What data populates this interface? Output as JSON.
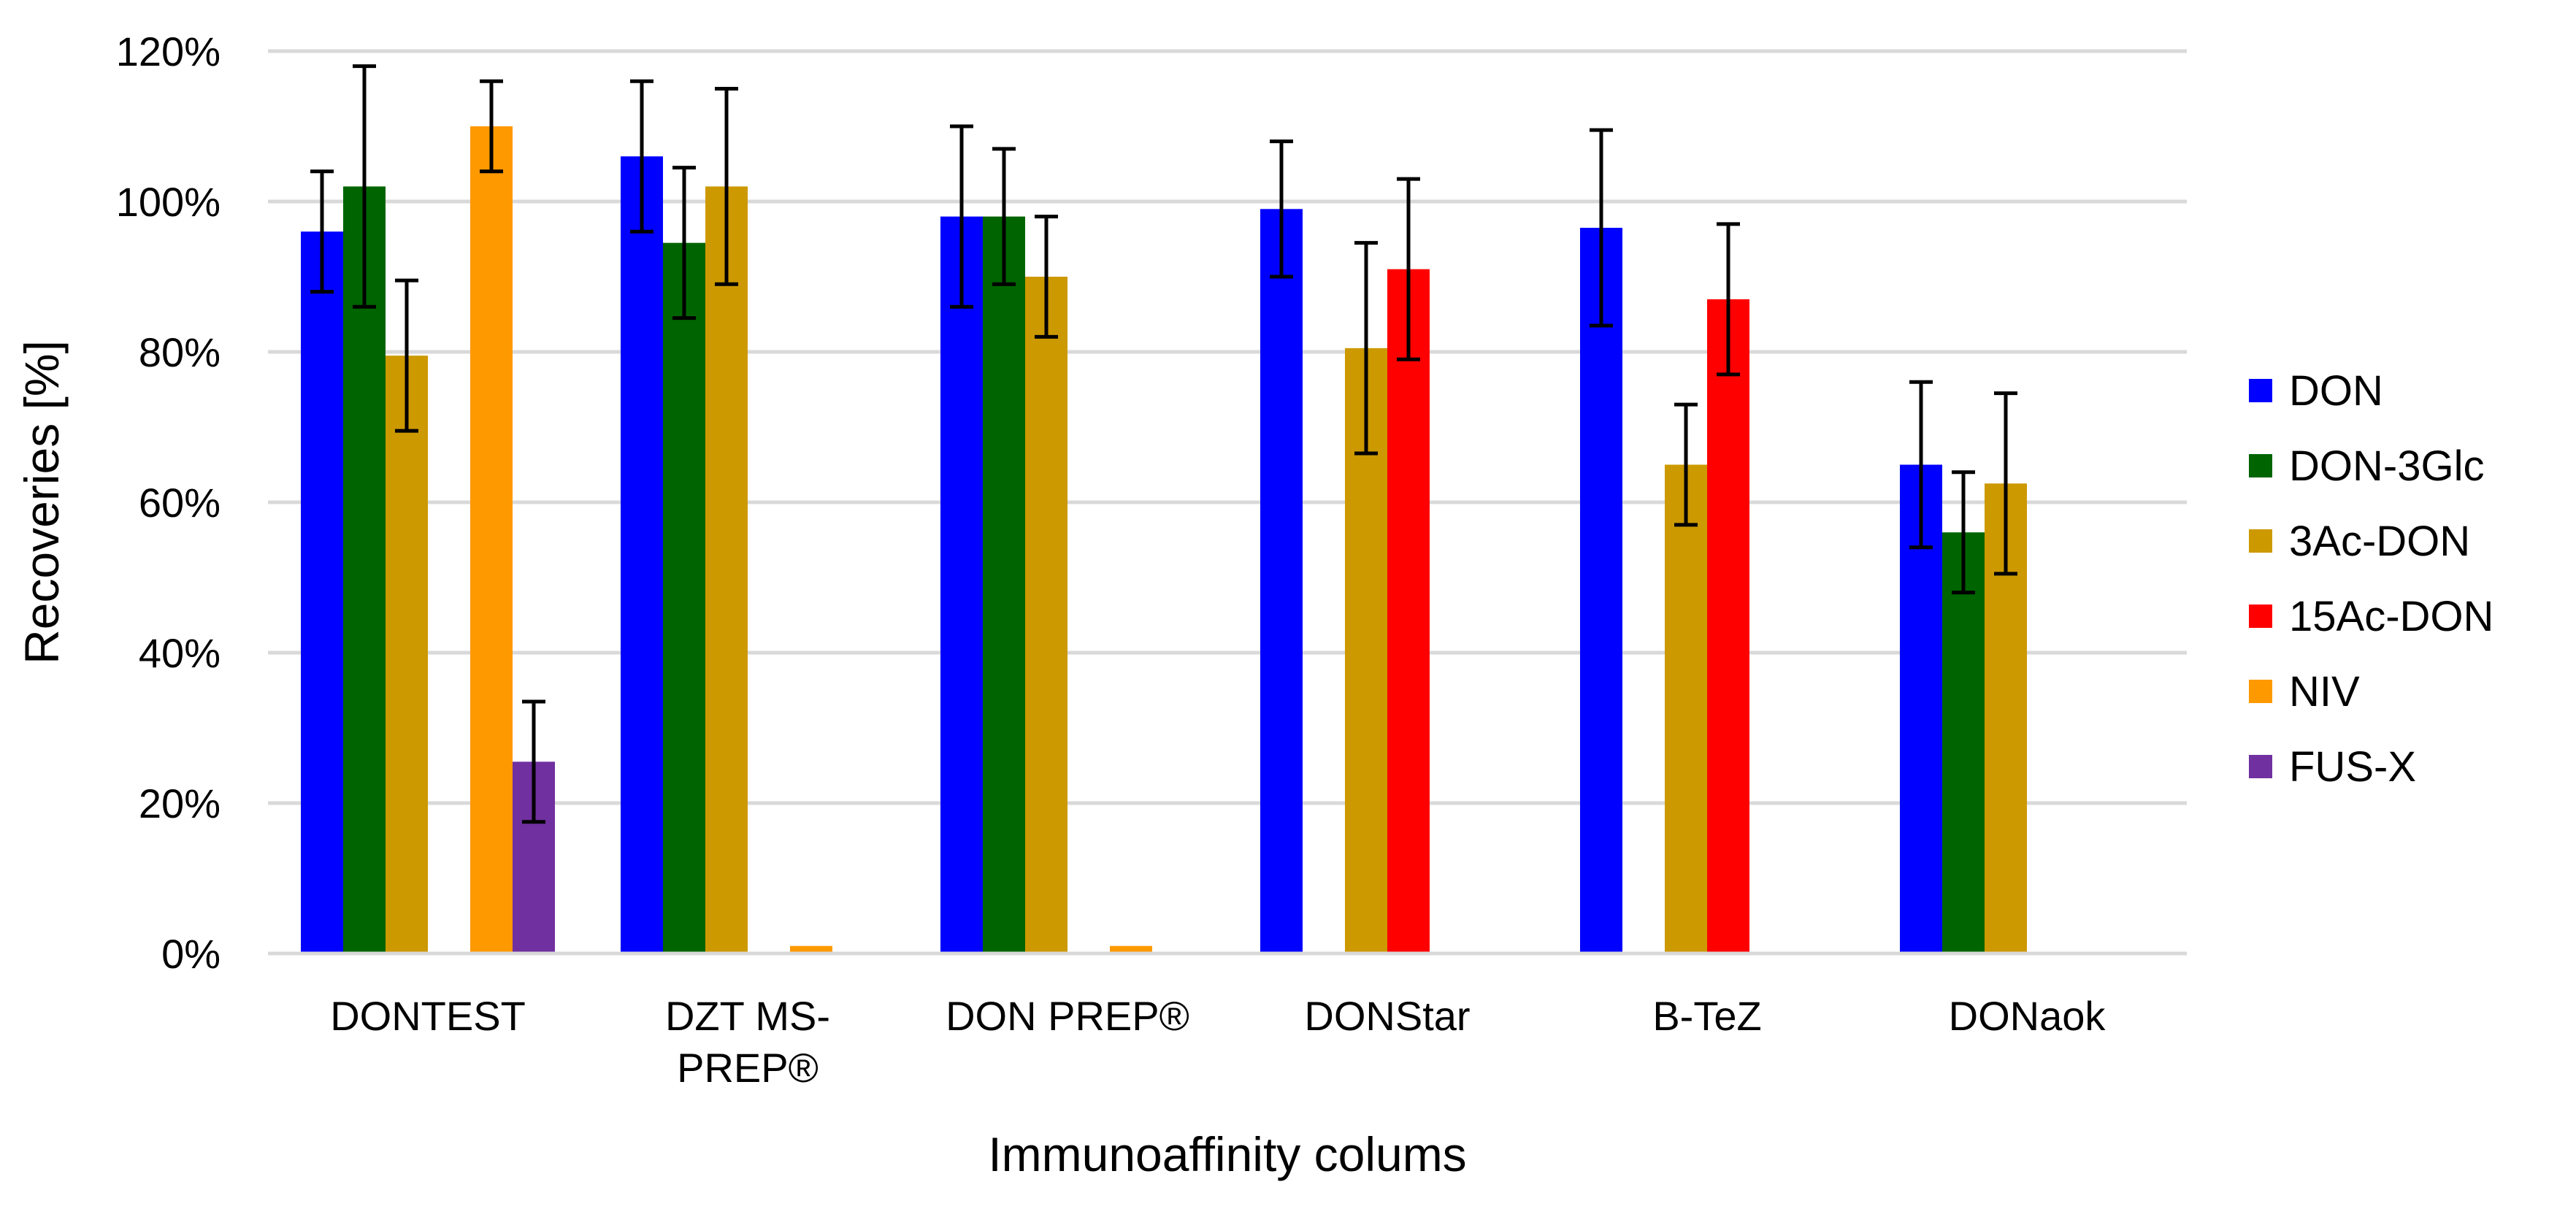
{
  "chart_data": {
    "type": "bar",
    "title": "",
    "xlabel": "Immunoaffinity colums",
    "ylabel": "Recoveries [%]",
    "ylim": [
      0,
      120
    ],
    "yticks": [
      "0%",
      "20%",
      "40%",
      "60%",
      "80%",
      "100%",
      "120%"
    ],
    "grid": true,
    "legend_position": "right",
    "categories": [
      [
        "DONTEST"
      ],
      [
        "DZT MS-",
        "PREP®"
      ],
      [
        "DON PREP®"
      ],
      [
        "DONStar"
      ],
      [
        "B-TeZ"
      ],
      [
        "DONaok"
      ]
    ],
    "series": [
      {
        "name": "DON",
        "color": "#0000FF",
        "values": [
          96,
          106,
          98,
          99,
          96.5,
          65
        ],
        "errors": [
          8,
          10,
          12,
          9,
          13,
          11
        ]
      },
      {
        "name": "DON-3Glc",
        "color": "#006400",
        "values": [
          102,
          94.5,
          98,
          null,
          null,
          56
        ],
        "errors": [
          16,
          10,
          9,
          null,
          null,
          8
        ]
      },
      {
        "name": "3Ac-DON",
        "color": "#CC9900",
        "values": [
          79.5,
          102,
          90,
          80.5,
          65,
          62.5
        ],
        "errors": [
          10,
          13,
          8,
          14,
          8,
          12
        ]
      },
      {
        "name": "15Ac-DON",
        "color": "#FF0000",
        "values": [
          null,
          null,
          null,
          91,
          87,
          null
        ],
        "errors": [
          null,
          null,
          null,
          12,
          10,
          null
        ]
      },
      {
        "name": "NIV",
        "color": "#FF9900",
        "values": [
          110,
          1,
          1,
          null,
          null,
          null
        ],
        "errors": [
          6,
          null,
          null,
          null,
          null,
          null
        ]
      },
      {
        "name": "FUS-X",
        "color": "#7030A0",
        "values": [
          25.5,
          null,
          null,
          null,
          null,
          null
        ],
        "errors": [
          8,
          null,
          null,
          null,
          null,
          null
        ]
      }
    ]
  }
}
